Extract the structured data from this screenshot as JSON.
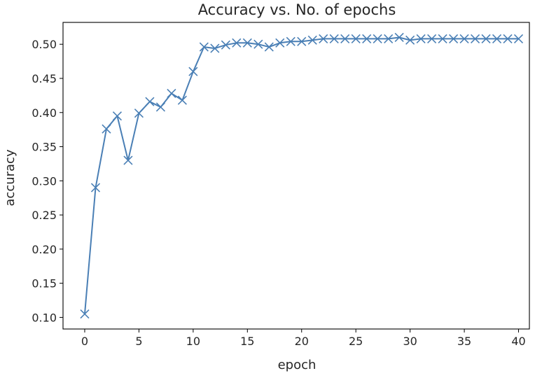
{
  "chart_data": {
    "type": "line",
    "title": "Accuracy vs. No. of epochs",
    "xlabel": "epoch",
    "ylabel": "accuracy",
    "xlim": [
      -2,
      41
    ],
    "ylim": [
      0.083,
      0.532
    ],
    "xticks": [
      0,
      5,
      10,
      15,
      20,
      25,
      30,
      35,
      40
    ],
    "xtick_labels": [
      "0",
      "5",
      "10",
      "15",
      "20",
      "25",
      "30",
      "35",
      "40"
    ],
    "yticks": [
      0.1,
      0.15,
      0.2,
      0.25,
      0.3,
      0.35,
      0.4,
      0.45,
      0.5
    ],
    "ytick_labels": [
      "0.10",
      "0.15",
      "0.20",
      "0.25",
      "0.30",
      "0.35",
      "0.40",
      "0.45",
      "0.50"
    ],
    "grid": false,
    "marker": "x",
    "color": "#4a7fb5",
    "x": [
      0,
      1,
      2,
      3,
      4,
      5,
      6,
      7,
      8,
      9,
      10,
      11,
      12,
      13,
      14,
      15,
      16,
      17,
      18,
      19,
      20,
      21,
      22,
      23,
      24,
      25,
      26,
      27,
      28,
      29,
      30,
      31,
      32,
      33,
      34,
      35,
      36,
      37,
      38,
      39,
      40
    ],
    "y": [
      0.105,
      0.29,
      0.376,
      0.395,
      0.33,
      0.399,
      0.416,
      0.408,
      0.428,
      0.418,
      0.46,
      0.496,
      0.494,
      0.499,
      0.502,
      0.502,
      0.5,
      0.496,
      0.502,
      0.504,
      0.504,
      0.506,
      0.508,
      0.508,
      0.508,
      0.508,
      0.508,
      0.508,
      0.508,
      0.51,
      0.506,
      0.508,
      0.508,
      0.508,
      0.508,
      0.508,
      0.508,
      0.508,
      0.508,
      0.508,
      0.508
    ]
  }
}
